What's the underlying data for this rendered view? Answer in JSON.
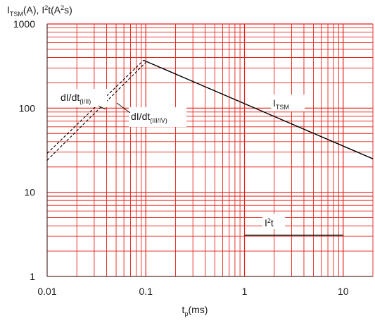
{
  "chart_data": {
    "type": "line",
    "scale": {
      "x": "log",
      "y": "log"
    },
    "xlim": [
      0.01,
      20
    ],
    "ylim": [
      1,
      1000
    ],
    "grid": true,
    "grid_color": "#e32119",
    "x_ticks": [
      {
        "value": 0.01,
        "label": "0.01"
      },
      {
        "value": 0.1,
        "label": "0.1"
      },
      {
        "value": 1,
        "label": "1"
      },
      {
        "value": 10,
        "label": "10"
      }
    ],
    "y_ticks": [
      {
        "value": 1,
        "label": "1"
      },
      {
        "value": 10,
        "label": "10"
      },
      {
        "value": 100,
        "label": "100"
      },
      {
        "value": 1000,
        "label": "1000"
      }
    ],
    "ylabel": {
      "main": "I",
      "sub": "TSM",
      "rest_a": "(A), I",
      "sup": "2",
      "rest_b": "t(A",
      "sup2": "2",
      "rest_c": "s)"
    },
    "xlabel": {
      "main": "t",
      "sub": "p",
      "rest": "(ms)"
    },
    "series": [
      {
        "name_main": "I",
        "name_sub": "TSM",
        "style": "solid",
        "color": "#000000",
        "x": [
          0.095,
          20
        ],
        "y": [
          370,
          25
        ]
      },
      {
        "name_main": "I",
        "name_sup": "2",
        "name_rest": "t",
        "style": "solid",
        "color": "#000000",
        "x": [
          1,
          10
        ],
        "y": [
          3.1,
          3.1
        ]
      },
      {
        "name_main": "dI/dt",
        "name_sub": "(I/II)",
        "style": "dashed",
        "color": "#000000",
        "x": [
          0.01,
          0.095
        ],
        "y": [
          29,
          370
        ]
      },
      {
        "name_main": "dI/dt",
        "name_sub": "(III/IV)",
        "style": "dashed",
        "color": "#000000",
        "x": [
          0.01,
          0.1
        ],
        "y": [
          24,
          350
        ]
      }
    ]
  }
}
